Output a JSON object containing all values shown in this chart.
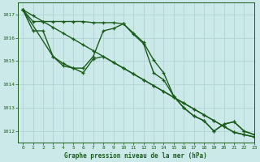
{
  "title": "Graphe pression niveau de la mer (hPa)",
  "background_color": "#cce9e9",
  "grid_color": "#aacfcf",
  "line_color": "#1a5c1a",
  "xlim": [
    -0.5,
    23
  ],
  "ylim": [
    1011.5,
    1017.5
  ],
  "yticks": [
    1012,
    1013,
    1014,
    1015,
    1016,
    1017
  ],
  "xticks": [
    0,
    1,
    2,
    3,
    4,
    5,
    6,
    7,
    8,
    9,
    10,
    11,
    12,
    13,
    14,
    15,
    16,
    17,
    18,
    19,
    20,
    21,
    22,
    23
  ],
  "series1": {
    "x": [
      0,
      1,
      2,
      3,
      4,
      5,
      6,
      7,
      8,
      9,
      10,
      11,
      12,
      13,
      14,
      15,
      16,
      17,
      18,
      19,
      20,
      21,
      22,
      23
    ],
    "y": [
      1017.2,
      1016.7,
      1016.7,
      1016.7,
      1016.7,
      1016.7,
      1016.7,
      1016.65,
      1016.65,
      1016.65,
      1016.6,
      1016.2,
      1015.8,
      1015.05,
      1014.5,
      1013.5,
      1013.0,
      1012.65,
      1012.45,
      1012.0,
      1012.3,
      1012.4,
      1012.0,
      1011.85
    ]
  },
  "series2": {
    "x": [
      0,
      1,
      2,
      3,
      4,
      5,
      6,
      7,
      8,
      9,
      10,
      11,
      12,
      13,
      14,
      15,
      16,
      17,
      18,
      19,
      20,
      21,
      22,
      23
    ],
    "y": [
      1017.2,
      1016.3,
      1016.3,
      1015.2,
      1014.8,
      1014.7,
      1014.7,
      1015.2,
      1016.3,
      1016.4,
      1016.6,
      1016.15,
      1015.75,
      1014.5,
      1014.2,
      1013.5,
      1013.0,
      1012.65,
      1012.45,
      1012.0,
      1012.3,
      1012.4,
      1012.0,
      1011.85
    ]
  },
  "series3": {
    "x": [
      0,
      1,
      2,
      3,
      4,
      5,
      6,
      7,
      8,
      9,
      10,
      11,
      12,
      13,
      14,
      15,
      16,
      17,
      18,
      19,
      20,
      21,
      22,
      23
    ],
    "y": [
      1017.2,
      1016.95,
      1016.7,
      1016.45,
      1016.2,
      1015.95,
      1015.7,
      1015.45,
      1015.2,
      1014.95,
      1014.7,
      1014.45,
      1014.2,
      1013.95,
      1013.7,
      1013.45,
      1013.2,
      1012.95,
      1012.7,
      1012.45,
      1012.2,
      1011.95,
      1011.85,
      1011.75
    ]
  },
  "series4": {
    "x": [
      0,
      3,
      4,
      5,
      6,
      7,
      8,
      9,
      10,
      11,
      12,
      13,
      14,
      15,
      16,
      17,
      18,
      19,
      20,
      21,
      22,
      23
    ],
    "y": [
      1017.2,
      1015.2,
      1014.9,
      1014.7,
      1014.5,
      1015.1,
      1015.2,
      1014.95,
      1014.7,
      1014.45,
      1014.2,
      1013.95,
      1013.7,
      1013.45,
      1013.2,
      1012.95,
      1012.7,
      1012.45,
      1012.2,
      1011.95,
      1011.85,
      1011.75
    ]
  }
}
